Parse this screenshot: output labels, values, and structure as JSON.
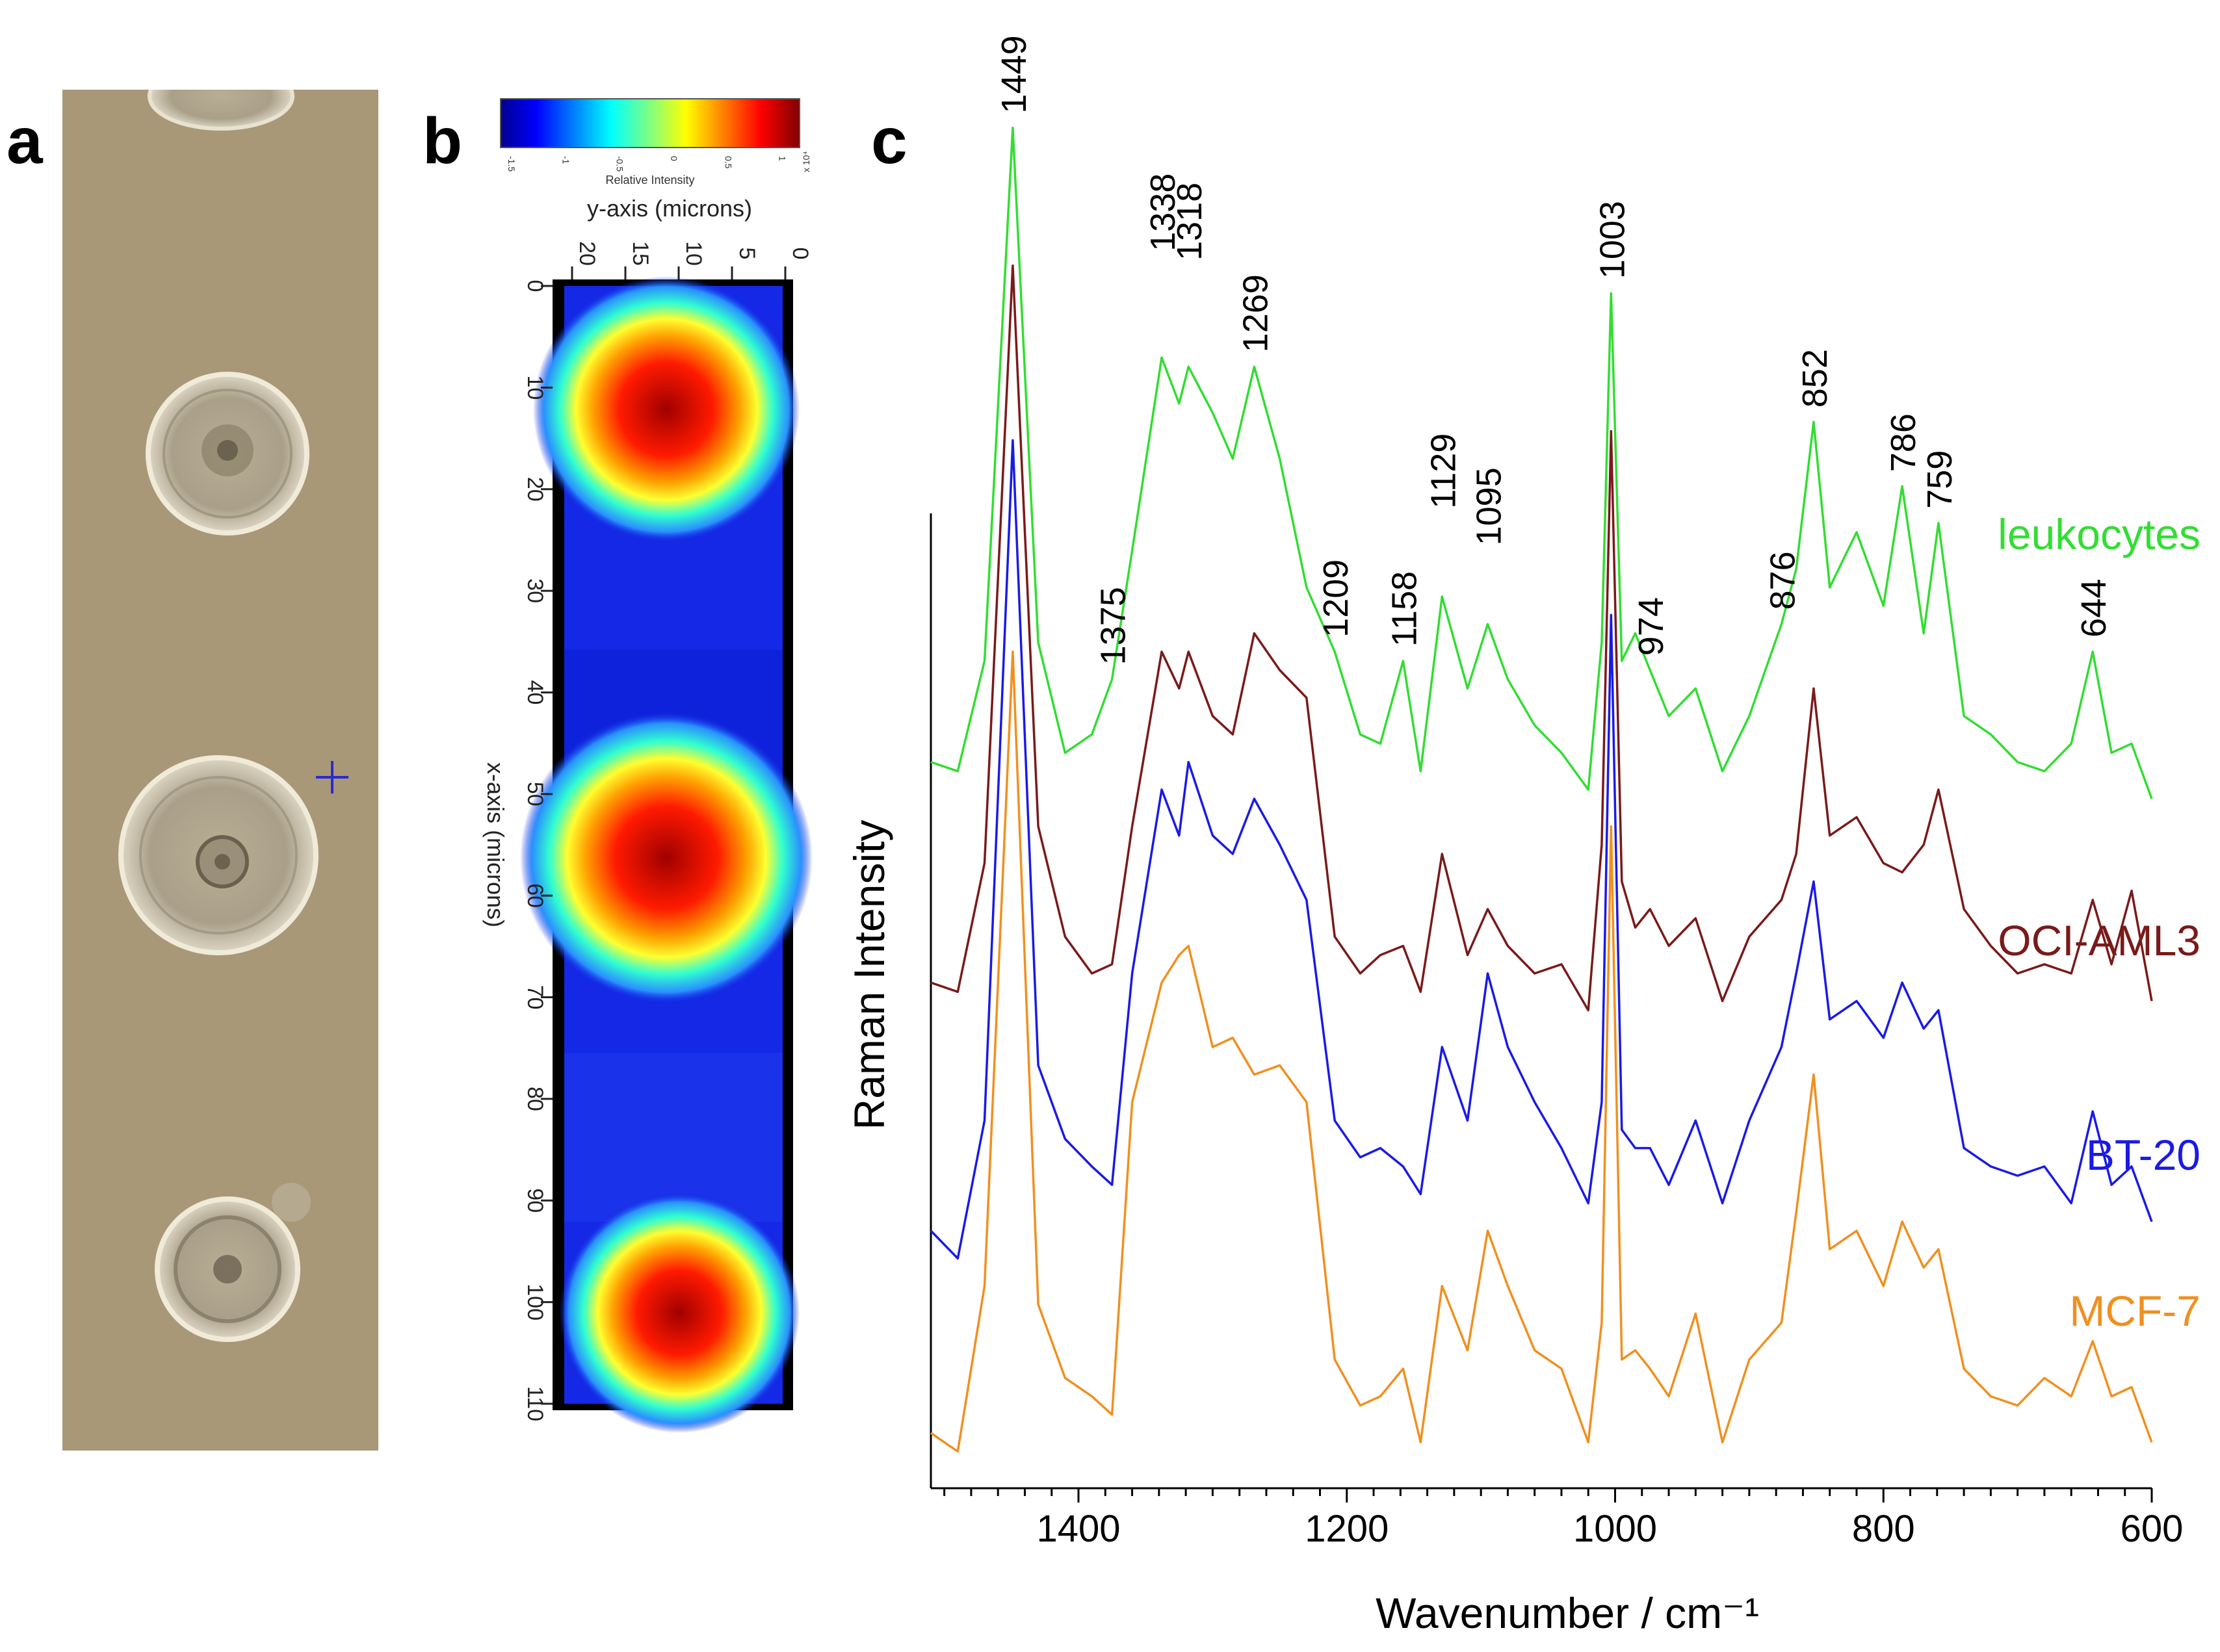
{
  "panels": {
    "a": {
      "letter": "a"
    },
    "b": {
      "letter": "b"
    },
    "c": {
      "letter": "c"
    }
  },
  "colorbar": {
    "ticks": [
      "-1.5",
      "-1",
      "-0.5",
      "0",
      "0.5",
      "1"
    ],
    "multiplier": "x 10⁴",
    "label": "Relative Intensity"
  },
  "raman_map": {
    "y_axis_label": "y-axis (microns)",
    "y_ticks": [
      "20",
      "15",
      "10",
      "5",
      "0"
    ],
    "x_axis_label": "x-axis (microns)",
    "x_ticks": [
      "0",
      "10",
      "20",
      "30",
      "40",
      "50",
      "60",
      "70",
      "80",
      "90",
      "100",
      "110"
    ]
  },
  "colors": {
    "leukocytes": "#33dd33",
    "oci_aml3": "#7a1a1a",
    "bt20": "#1a1ae6",
    "mcf7": "#f09020",
    "cell_background": "#a89878"
  },
  "chart_data": {
    "type": "line",
    "title": "",
    "xlabel": "Wavenumber / cm⁻¹",
    "ylabel": "Raman Intensity",
    "xlim": [
      1510,
      600
    ],
    "x_ticks": [
      1400,
      1200,
      1000,
      800,
      600
    ],
    "peak_labels": [
      "1449",
      "1375",
      "1338",
      "1318",
      "1269",
      "1209",
      "1158",
      "1129",
      "1095",
      "1003",
      "974",
      "876",
      "852",
      "786",
      "759",
      "644"
    ],
    "series": [
      {
        "name": "leukocytes",
        "x": [
          1510,
          1490,
          1470,
          1449,
          1430,
          1410,
          1390,
          1375,
          1360,
          1338,
          1325,
          1318,
          1300,
          1285,
          1269,
          1250,
          1230,
          1209,
          1190,
          1175,
          1158,
          1145,
          1129,
          1110,
          1095,
          1080,
          1060,
          1040,
          1020,
          1010,
          1003,
          995,
          985,
          974,
          960,
          940,
          920,
          900,
          876,
          865,
          852,
          840,
          820,
          800,
          786,
          770,
          759,
          740,
          720,
          700,
          680,
          660,
          644,
          630,
          615,
          600
        ],
        "values": [
          1.35,
          1.3,
          1.9,
          4.8,
          2.0,
          1.4,
          1.5,
          1.8,
          2.5,
          3.55,
          3.3,
          3.5,
          3.25,
          3.0,
          3.5,
          3.0,
          2.3,
          1.95,
          1.5,
          1.45,
          1.9,
          1.3,
          2.25,
          1.75,
          2.1,
          1.8,
          1.55,
          1.4,
          1.2,
          2.0,
          3.9,
          1.9,
          2.05,
          1.85,
          1.6,
          1.75,
          1.3,
          1.6,
          2.1,
          2.4,
          3.2,
          2.3,
          2.6,
          2.2,
          2.85,
          2.05,
          2.65,
          1.6,
          1.5,
          1.35,
          1.3,
          1.45,
          1.95,
          1.4,
          1.45,
          1.15
        ]
      },
      {
        "name": "OCI-AML3",
        "x": [
          1510,
          1490,
          1470,
          1449,
          1430,
          1410,
          1390,
          1375,
          1360,
          1338,
          1325,
          1318,
          1300,
          1285,
          1269,
          1250,
          1230,
          1209,
          1190,
          1175,
          1158,
          1145,
          1129,
          1110,
          1095,
          1080,
          1060,
          1040,
          1020,
          1010,
          1003,
          995,
          985,
          974,
          960,
          940,
          920,
          900,
          876,
          865,
          852,
          840,
          820,
          800,
          786,
          770,
          759,
          740,
          720,
          700,
          680,
          660,
          644,
          630,
          615,
          600
        ],
        "values": [
          0.15,
          0.1,
          0.8,
          4.05,
          1.0,
          0.4,
          0.2,
          0.25,
          1.0,
          1.95,
          1.75,
          1.95,
          1.6,
          1.5,
          2.05,
          1.85,
          1.7,
          0.4,
          0.2,
          0.3,
          0.35,
          0.1,
          0.85,
          0.3,
          0.55,
          0.35,
          0.2,
          0.25,
          0.0,
          0.9,
          3.15,
          0.7,
          0.45,
          0.55,
          0.35,
          0.5,
          0.05,
          0.4,
          0.6,
          0.85,
          1.75,
          0.95,
          1.05,
          0.8,
          0.75,
          0.9,
          1.2,
          0.55,
          0.35,
          0.2,
          0.25,
          0.2,
          0.6,
          0.25,
          0.65,
          0.05
        ]
      },
      {
        "name": "BT-20",
        "x": [
          1510,
          1490,
          1470,
          1449,
          1430,
          1410,
          1390,
          1375,
          1360,
          1338,
          1325,
          1318,
          1300,
          1285,
          1269,
          1250,
          1230,
          1209,
          1190,
          1175,
          1158,
          1145,
          1129,
          1110,
          1095,
          1080,
          1060,
          1040,
          1020,
          1010,
          1003,
          995,
          985,
          974,
          960,
          940,
          920,
          900,
          876,
          865,
          852,
          840,
          820,
          800,
          786,
          770,
          759,
          740,
          720,
          700,
          680,
          660,
          644,
          630,
          615,
          600
        ],
        "values": [
          -1.2,
          -1.35,
          -0.6,
          3.1,
          -0.3,
          -0.7,
          -0.85,
          -0.95,
          0.2,
          1.2,
          0.95,
          1.35,
          0.95,
          0.85,
          1.15,
          0.9,
          0.6,
          -0.6,
          -0.8,
          -0.75,
          -0.85,
          -1.0,
          -0.2,
          -0.6,
          0.2,
          -0.2,
          -0.5,
          -0.75,
          -1.05,
          -0.5,
          2.15,
          -0.65,
          -0.75,
          -0.75,
          -0.95,
          -0.6,
          -1.05,
          -0.6,
          -0.2,
          0.2,
          0.7,
          -0.05,
          0.05,
          -0.15,
          0.15,
          -0.1,
          0.0,
          -0.75,
          -0.85,
          -0.9,
          -0.85,
          -1.05,
          -0.55,
          -0.95,
          -0.85,
          -1.15
        ]
      },
      {
        "name": "MCF-7",
        "x": [
          1510,
          1490,
          1470,
          1449,
          1430,
          1410,
          1390,
          1375,
          1360,
          1338,
          1325,
          1318,
          1300,
          1285,
          1269,
          1250,
          1230,
          1209,
          1190,
          1175,
          1158,
          1145,
          1129,
          1110,
          1095,
          1080,
          1060,
          1040,
          1020,
          1010,
          1003,
          995,
          985,
          974,
          960,
          940,
          920,
          900,
          876,
          865,
          852,
          840,
          820,
          800,
          786,
          770,
          759,
          740,
          720,
          700,
          680,
          660,
          644,
          630,
          615,
          600
        ],
        "values": [
          -2.3,
          -2.4,
          -1.5,
          1.95,
          -1.6,
          -2.0,
          -2.1,
          -2.2,
          -0.5,
          0.15,
          0.3,
          0.35,
          -0.2,
          -0.15,
          -0.35,
          -0.3,
          -0.5,
          -1.9,
          -2.15,
          -2.1,
          -1.95,
          -2.35,
          -1.5,
          -1.85,
          -1.2,
          -1.5,
          -1.85,
          -1.95,
          -2.35,
          -1.7,
          1.0,
          -1.9,
          -1.85,
          -1.95,
          -2.1,
          -1.65,
          -2.35,
          -1.9,
          -1.7,
          -1.1,
          -0.35,
          -1.3,
          -1.2,
          -1.5,
          -1.15,
          -1.4,
          -1.3,
          -1.95,
          -2.1,
          -2.15,
          -2.0,
          -2.1,
          -1.8,
          -2.1,
          -2.05,
          -2.35
        ]
      }
    ]
  }
}
